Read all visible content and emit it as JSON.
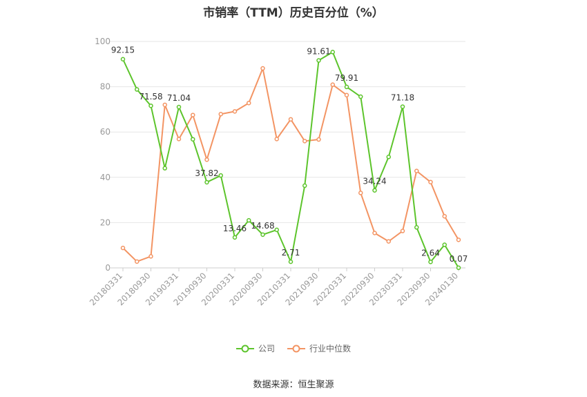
{
  "chart_data": {
    "type": "line",
    "title": "市销率（TTM）历史百分位（%）",
    "ylim": [
      0,
      100
    ],
    "yticks": [
      0,
      20,
      40,
      60,
      80,
      100
    ],
    "x": [
      "20180331",
      "20180630",
      "20180930",
      "20181231",
      "20190331",
      "20190630",
      "20190930",
      "20191231",
      "20200331",
      "20200630",
      "20200930",
      "20201231",
      "20210331",
      "20210630",
      "20210930",
      "20211231",
      "20220331",
      "20220630",
      "20220930",
      "20221231",
      "20230331",
      "20230630",
      "20230930",
      "20231231",
      "20240130"
    ],
    "xtick_labels": [
      "20180331",
      "20180930",
      "20190331",
      "20190930",
      "20200331",
      "20200930",
      "20210331",
      "20210930",
      "20220331",
      "20220930",
      "20230331",
      "20230930",
      "20240130"
    ],
    "series": [
      {
        "name": "公司",
        "color": "#5cc42b",
        "values": [
          92.15,
          78.8,
          71.58,
          44.0,
          71.04,
          56.8,
          37.82,
          40.8,
          13.46,
          21.0,
          14.68,
          16.8,
          2.71,
          36.3,
          91.61,
          95.3,
          79.91,
          75.6,
          34.24,
          49.0,
          71.18,
          17.9,
          2.64,
          10.2,
          0.07
        ],
        "labels": {
          "0": "92.15",
          "2": "71.58",
          "4": "71.04",
          "6": "37.82",
          "8": "13.46",
          "10": "14.68",
          "12": "2.71",
          "14": "91.61",
          "16": "79.91",
          "18": "34.24",
          "20": "71.18",
          "22": "2.64",
          "24": "0.07"
        }
      },
      {
        "name": "行业中位数",
        "color": "#f39463",
        "values": [
          8.8,
          2.8,
          5.1,
          72.0,
          56.9,
          67.5,
          47.8,
          67.9,
          69.1,
          72.8,
          88.1,
          56.9,
          65.6,
          56.0,
          56.7,
          80.9,
          76.3,
          33.1,
          15.4,
          11.7,
          16.3,
          42.8,
          37.9,
          22.8,
          12.4
        ]
      }
    ],
    "legend_position": "bottom",
    "grid": true
  },
  "source": "数据来源：恒生聚源"
}
